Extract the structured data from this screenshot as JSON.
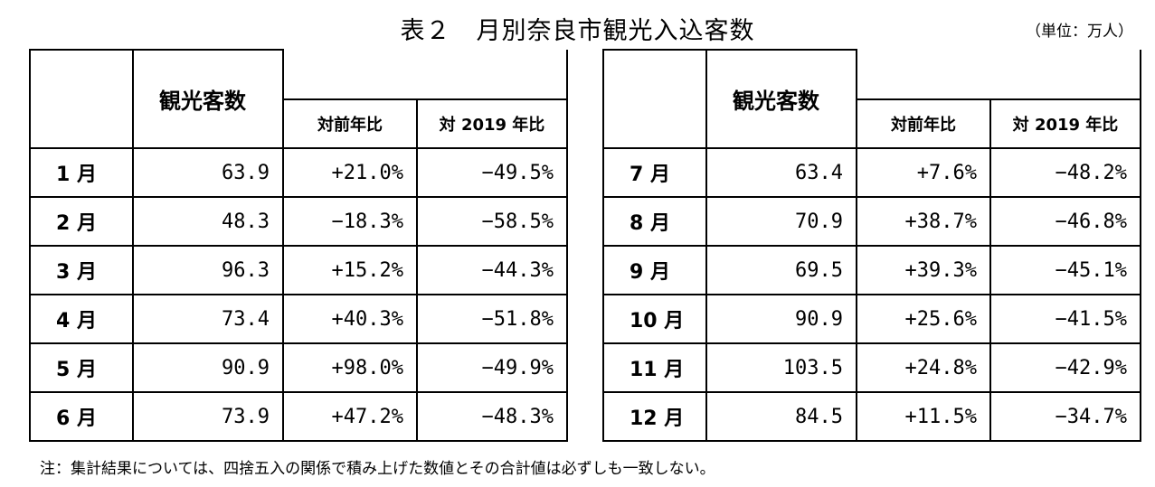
{
  "title": "表２　月別奈良市観光入込客数",
  "unit": "（単位：万人）",
  "headers": {
    "visitors": "観光客数",
    "yoy": "対前年比",
    "vs2019": "対 2019 年比"
  },
  "rows_left": [
    {
      "month": "1 月",
      "visitors": "63.9",
      "yoy": "+21.0%",
      "vs2019": "−49.5%"
    },
    {
      "month": "2 月",
      "visitors": "48.3",
      "yoy": "−18.3%",
      "vs2019": "−58.5%"
    },
    {
      "month": "3 月",
      "visitors": "96.3",
      "yoy": "+15.2%",
      "vs2019": "−44.3%"
    },
    {
      "month": "4 月",
      "visitors": "73.4",
      "yoy": "+40.3%",
      "vs2019": "−51.8%"
    },
    {
      "month": "5 月",
      "visitors": "90.9",
      "yoy": "+98.0%",
      "vs2019": "−49.9%"
    },
    {
      "month": "6 月",
      "visitors": "73.9",
      "yoy": "+47.2%",
      "vs2019": "−48.3%"
    }
  ],
  "rows_right": [
    {
      "month": "7 月",
      "visitors": "63.4",
      "yoy": "+7.6%",
      "vs2019": "−48.2%"
    },
    {
      "month": "8 月",
      "visitors": "70.9",
      "yoy": "+38.7%",
      "vs2019": "−46.8%"
    },
    {
      "month": "9 月",
      "visitors": "69.5",
      "yoy": "+39.3%",
      "vs2019": "−45.1%"
    },
    {
      "month": "10 月",
      "visitors": "90.9",
      "yoy": "+25.6%",
      "vs2019": "−41.5%"
    },
    {
      "month": "11 月",
      "visitors": "103.5",
      "yoy": "+24.8%",
      "vs2019": "−42.9%"
    },
    {
      "month": "12 月",
      "visitors": "84.5",
      "yoy": "+11.5%",
      "vs2019": "−34.7%"
    }
  ],
  "note": "注：集計結果については、四捨五入の関係で積み上げた数値とその合計値は必ずしも一致しない。"
}
